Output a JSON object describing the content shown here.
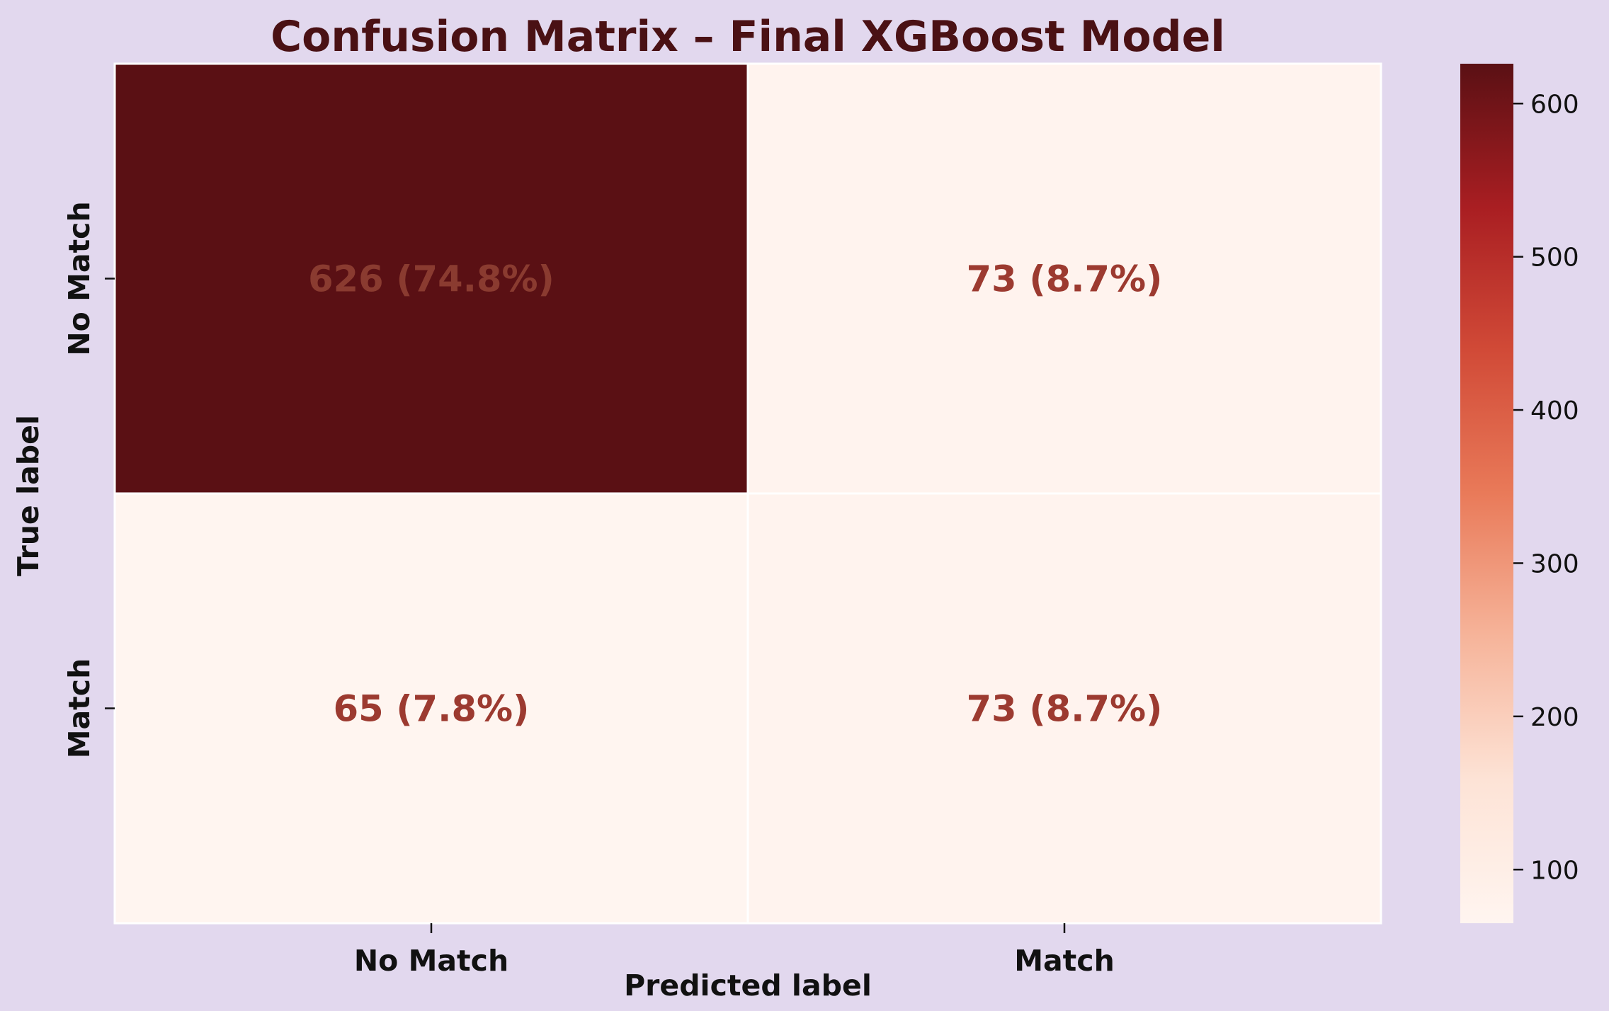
{
  "chart_data": {
    "type": "heatmap",
    "title": "Confusion Matrix – Final XGBoost Model",
    "xlabel": "Predicted label",
    "ylabel": "True label",
    "x_categories": [
      "No Match",
      "Match"
    ],
    "y_categories": [
      "No Match",
      "Match"
    ],
    "values": [
      [
        626,
        73
      ],
      [
        65,
        73
      ]
    ],
    "cell_labels": [
      [
        "626 (74.8%)",
        "73 (8.7%)"
      ],
      [
        "65 (7.8%)",
        "73 (8.7%)"
      ]
    ],
    "colorbar": {
      "range": [
        65,
        626
      ],
      "ticks": [
        100,
        200,
        300,
        400,
        500,
        600
      ],
      "colormap": [
        "#fff5f0",
        "#fde3d6",
        "#f6b49a",
        "#e97a59",
        "#d14a37",
        "#a91e22",
        "#5a1014"
      ]
    },
    "colors": {
      "background": "#e2d8ee",
      "title": "#4a1114",
      "cell_text": "#9c3a30",
      "cell_text_dark_cell": "#8a3b30"
    },
    "grid": false,
    "legend": "colorbar-right"
  }
}
